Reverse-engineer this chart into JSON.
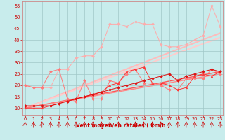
{
  "xlabel": "Vent moyen/en rafales ( km/h )",
  "background_color": "#c8ecec",
  "grid_color": "#a0c8c8",
  "x_ticks": [
    0,
    1,
    2,
    3,
    4,
    5,
    6,
    7,
    8,
    9,
    10,
    11,
    12,
    13,
    14,
    15,
    16,
    17,
    18,
    19,
    20,
    21,
    22,
    23
  ],
  "y_ticks": [
    10,
    15,
    20,
    25,
    30,
    35,
    40,
    45,
    50,
    55
  ],
  "ylim": [
    7,
    57
  ],
  "xlim": [
    -0.3,
    23.3
  ],
  "line_pink_x": [
    0,
    1,
    2,
    3,
    4,
    5,
    6,
    7,
    8,
    9,
    10,
    11,
    12,
    13,
    14,
    15,
    16,
    17,
    18,
    19,
    20,
    21,
    22,
    23
  ],
  "line_pink_y": [
    20,
    19,
    19,
    19,
    27,
    27,
    32,
    33,
    33,
    37,
    47,
    47,
    46,
    48,
    47,
    47,
    38,
    37,
    37,
    38,
    40,
    42,
    55,
    46
  ],
  "line_pink_color": "#ffaaaa",
  "line_salmon_x": [
    0,
    1,
    2,
    3,
    4,
    5,
    6,
    7,
    8,
    9,
    10,
    11,
    12,
    13,
    14,
    15,
    16,
    17,
    18,
    19,
    20,
    21,
    22,
    23
  ],
  "line_salmon_y": [
    20,
    19,
    19,
    26,
    27,
    14,
    13,
    22,
    14,
    14,
    22,
    21,
    25,
    27,
    21,
    21,
    20,
    18,
    18,
    23,
    23,
    23,
    27,
    25
  ],
  "line_salmon_color": "#ff7777",
  "line_red_x": [
    0,
    1,
    2,
    3,
    4,
    5,
    6,
    7,
    8,
    9,
    10,
    11,
    12,
    13,
    14,
    15,
    16,
    17,
    18,
    19,
    20,
    21,
    22,
    23
  ],
  "line_red_y": [
    10,
    10,
    10,
    11,
    12,
    13,
    14,
    15,
    16,
    17,
    20,
    21,
    26,
    27,
    28,
    21,
    21,
    20,
    18,
    19,
    24,
    25,
    24,
    26
  ],
  "line_red_color": "#ff3333",
  "line_dark_x": [
    0,
    1,
    2,
    3,
    4,
    5,
    6,
    7,
    8,
    9,
    10,
    11,
    12,
    13,
    14,
    15,
    16,
    17,
    18,
    19,
    20,
    21,
    22,
    23
  ],
  "line_dark_y": [
    11,
    11,
    11,
    11,
    12,
    13,
    14,
    15,
    16,
    17,
    18,
    19,
    20,
    21,
    22,
    23,
    24,
    25,
    22,
    24,
    25,
    26,
    27,
    26
  ],
  "line_dark_color": "#dd1111",
  "reg_lines": [
    {
      "x": [
        0,
        23
      ],
      "y": [
        10,
        43
      ],
      "color": "#ffbbbb",
      "lw": 1.5
    },
    {
      "x": [
        0,
        23
      ],
      "y": [
        10,
        41
      ],
      "color": "#ffcccc",
      "lw": 1.5
    },
    {
      "x": [
        0,
        23
      ],
      "y": [
        10,
        26
      ],
      "color": "#ff5555",
      "lw": 1.0
    },
    {
      "x": [
        0,
        23
      ],
      "y": [
        10,
        25
      ],
      "color": "#ff8888",
      "lw": 1.0
    }
  ]
}
